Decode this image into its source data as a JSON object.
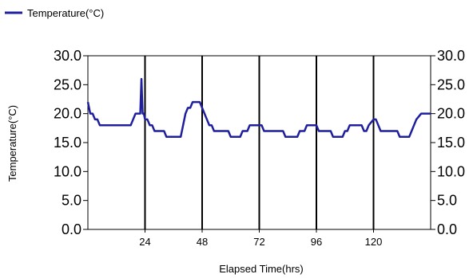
{
  "chart_data": {
    "type": "line",
    "title": "",
    "xlabel": "Elapsed Time(hrs)",
    "ylabel": "Temperature(°C)",
    "xlim": [
      0,
      144
    ],
    "ylim": [
      0,
      30
    ],
    "x_ticks": [
      24,
      48,
      72,
      96,
      120
    ],
    "x_tick_labels": [
      "24",
      "48",
      "72",
      "96",
      "120"
    ],
    "y_ticks": [
      0,
      5,
      10,
      15,
      20,
      25,
      30
    ],
    "y_tick_labels": [
      "0.0",
      "5.0",
      "10.0",
      "15.0",
      "20.0",
      "25.0",
      "30.0"
    ],
    "y2_tick_labels": [
      "0.0",
      "5.0",
      "10.0",
      "15.0",
      "20.0",
      "25.0",
      "30.0"
    ],
    "grid": "vertical",
    "legend": "top-left",
    "series": [
      {
        "name": "Temperature(°C)",
        "color": "#1f1f9e",
        "x": [
          0,
          1,
          2,
          3,
          4,
          5,
          18,
          19,
          20,
          22,
          22.5,
          23,
          23.5,
          24,
          25,
          26,
          27,
          28,
          32,
          33,
          39,
          40,
          41,
          42,
          43,
          44,
          47,
          48,
          49,
          50,
          51,
          52,
          53,
          54,
          59,
          60,
          64,
          65,
          67,
          68,
          73,
          74,
          82,
          83,
          88,
          89,
          91,
          92,
          96,
          97,
          102,
          103,
          107,
          108,
          109,
          110,
          115,
          116,
          117,
          118,
          120,
          121,
          122,
          123,
          130,
          131,
          135,
          136,
          137,
          138,
          140,
          141,
          144
        ],
        "values": [
          22,
          20,
          20,
          19,
          19,
          18,
          18,
          19,
          20,
          20,
          26,
          20,
          20,
          19,
          19,
          18,
          18,
          17,
          17,
          16,
          16,
          18,
          20,
          21,
          21,
          22,
          22,
          21,
          20,
          19,
          18,
          18,
          17,
          17,
          17,
          16,
          16,
          17,
          17,
          18,
          18,
          17,
          17,
          16,
          16,
          17,
          17,
          18,
          18,
          17,
          17,
          16,
          16,
          17,
          17,
          18,
          18,
          17,
          17,
          18,
          19,
          19,
          18,
          17,
          17,
          16,
          16,
          17,
          18,
          19,
          20,
          20,
          20
        ]
      }
    ]
  }
}
